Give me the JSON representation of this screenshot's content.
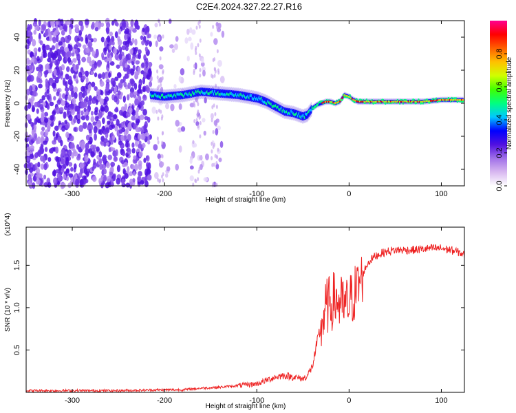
{
  "title": "C2E4.2024.327.22.27.R16",
  "chart_data": [
    {
      "type": "heatmap",
      "xlabel": "Height of straight line (km)",
      "ylabel": "Frequency (Hz)",
      "xlim": [
        -350,
        125
      ],
      "ylim": [
        -50,
        50
      ],
      "xticks": [
        -300,
        -200,
        -100,
        0,
        100
      ],
      "yticks": [
        -40,
        -20,
        0,
        20,
        40
      ],
      "colorbar": {
        "label": "Normalized spectral amplitude",
        "range": [
          0,
          1
        ],
        "ticks": [
          "0.0",
          "0.2",
          "0.4",
          "0.6",
          "0.8"
        ],
        "colors": [
          "#ffffff",
          "#d8b8f0",
          "#a070e8",
          "#5010e0",
          "#0000ff",
          "#00c8ff",
          "#00ff80",
          "#40ff00",
          "#d0ff00",
          "#ffc000",
          "#ff6000",
          "#ff0000",
          "#ff0090"
        ]
      },
      "ridge": {
        "x": [
          -215,
          -200,
          -180,
          -160,
          -140,
          -120,
          -100,
          -90,
          -80,
          -70,
          -60,
          -50,
          -45,
          -40,
          -35,
          -30,
          -25,
          -20,
          -15,
          -10,
          -5,
          0,
          5,
          10,
          20,
          40,
          60,
          80,
          100,
          120
        ],
        "y": [
          5,
          4,
          5,
          7,
          6,
          5,
          3,
          1,
          -2,
          -5,
          -6,
          -8,
          -7,
          -3,
          -1,
          0,
          1,
          1,
          0,
          1,
          5,
          4,
          2,
          1,
          1,
          1,
          1,
          1,
          2,
          2
        ]
      }
    },
    {
      "type": "line",
      "xlabel": "Height of straight line (km)",
      "ylabel": "SNR (10 * v/v)",
      "y_multiplier": "(x10^4)",
      "xlim": [
        -350,
        125
      ],
      "ylim": [
        0,
        1.95
      ],
      "xticks": [
        -300,
        -200,
        -100,
        0,
        100
      ],
      "yticks": [
        "0.5",
        "1.0",
        "1.5"
      ],
      "series": [
        {
          "color": "#ee2222",
          "x": [
            -350,
            -300,
            -250,
            -200,
            -180,
            -160,
            -140,
            -120,
            -100,
            -90,
            -80,
            -70,
            -60,
            -50,
            -45,
            -40,
            -35,
            -30,
            -25,
            -20,
            -15,
            -10,
            -5,
            0,
            5,
            10,
            15,
            20,
            25,
            30,
            40,
            50,
            60,
            70,
            80,
            90,
            100,
            110,
            120,
            125
          ],
          "y": [
            0.02,
            0.02,
            0.02,
            0.03,
            0.03,
            0.05,
            0.06,
            0.08,
            0.1,
            0.14,
            0.18,
            0.2,
            0.18,
            0.16,
            0.2,
            0.3,
            0.55,
            0.8,
            1.0,
            1.05,
            1.1,
            1.05,
            1.0,
            1.05,
            1.15,
            1.25,
            1.4,
            1.52,
            1.58,
            1.62,
            1.66,
            1.68,
            1.68,
            1.68,
            1.69,
            1.7,
            1.7,
            1.68,
            1.65,
            1.62
          ]
        }
      ]
    }
  ]
}
